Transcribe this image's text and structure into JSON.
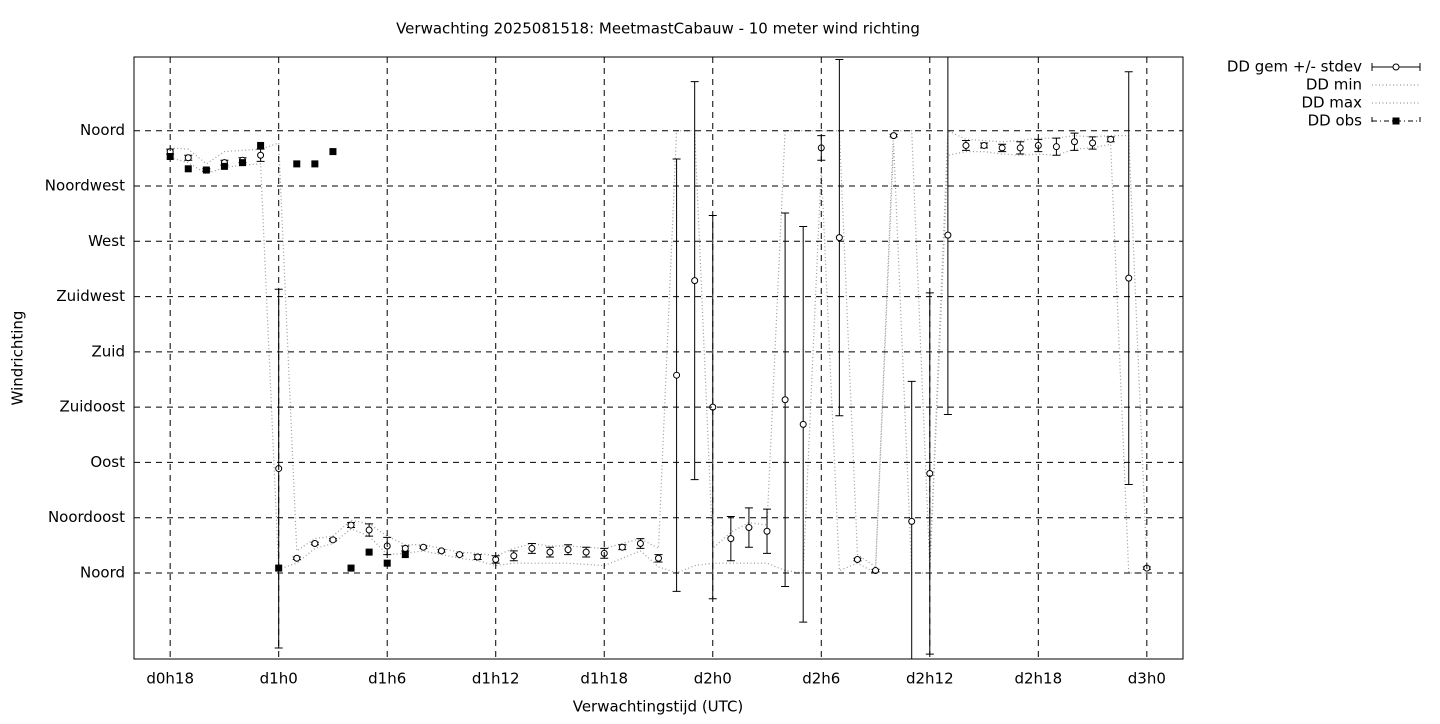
{
  "chart_data": {
    "type": "errorbar",
    "title": "Verwachting 2025081518: MeetmastCabauw - 10 meter wind richting",
    "xlabel": "Verwachtingstijd (UTC)",
    "ylabel": "Windrichting",
    "xlim": [
      16,
      74
    ],
    "xticks": [
      {
        "value": 18,
        "label": "d0h18"
      },
      {
        "value": 24,
        "label": "d1h0"
      },
      {
        "value": 30,
        "label": "d1h6"
      },
      {
        "value": 36,
        "label": "d1h12"
      },
      {
        "value": 42,
        "label": "d1h18"
      },
      {
        "value": 48,
        "label": "d2h0"
      },
      {
        "value": 54,
        "label": "d2h6"
      },
      {
        "value": 60,
        "label": "d2h12"
      },
      {
        "value": 66,
        "label": "d2h18"
      },
      {
        "value": 72,
        "label": "d3h0"
      }
    ],
    "ylim": [
      -70,
      420
    ],
    "yticks": [
      {
        "value": 0,
        "label": "Noord"
      },
      {
        "value": 45,
        "label": "Noordoost"
      },
      {
        "value": 90,
        "label": "Oost"
      },
      {
        "value": 135,
        "label": "Zuidoost"
      },
      {
        "value": 180,
        "label": "Zuid"
      },
      {
        "value": 225,
        "label": "Zuidwest"
      },
      {
        "value": 270,
        "label": "West"
      },
      {
        "value": 315,
        "label": "Noordwest"
      },
      {
        "value": 360,
        "label": "Noord"
      }
    ],
    "grid": true,
    "legend": "right",
    "x": [
      18,
      19,
      20,
      21,
      22,
      23,
      24,
      25,
      26,
      27,
      28,
      29,
      30,
      31,
      32,
      33,
      34,
      35,
      36,
      37,
      38,
      39,
      40,
      41,
      42,
      43,
      44,
      45,
      46,
      47,
      48,
      49,
      50,
      51,
      52,
      53,
      54,
      55,
      56,
      57,
      58,
      59,
      60,
      61,
      62,
      63,
      64,
      65,
      66,
      67,
      68,
      69,
      70,
      71,
      72
    ],
    "series": [
      {
        "name": "DD gem +/- stdev",
        "color": "#000000",
        "style": "errorbar",
        "values": [
          343,
          338,
          328,
          334,
          336,
          340,
          85,
          12,
          24,
          27,
          39,
          35,
          22,
          20,
          21,
          18,
          15,
          13,
          11,
          14,
          20,
          17,
          19,
          17,
          16,
          21,
          24,
          12,
          161,
          238,
          135,
          28,
          37,
          34,
          141,
          121,
          346,
          273,
          11,
          2,
          356,
          42,
          81,
          275,
          348,
          348,
          346,
          346,
          348,
          347,
          351,
          350,
          353,
          240,
          4
        ],
        "errors": [
          2,
          2,
          1,
          2,
          2,
          5,
          146,
          1,
          1,
          1,
          2,
          5,
          7,
          2,
          1,
          1,
          1,
          2,
          3,
          4,
          4,
          4,
          4,
          4,
          4,
          2,
          4,
          3,
          176,
          162,
          156,
          18,
          16,
          18,
          152,
          161,
          10,
          145,
          1,
          1,
          1,
          114,
          147,
          146,
          4,
          2,
          3,
          5,
          5,
          7,
          7,
          5,
          2,
          168,
          1
        ]
      },
      {
        "name": "DD min",
        "color": "#999999",
        "style": "dotted",
        "values": [
          338,
          334,
          325,
          330,
          332,
          333,
          3,
          8,
          20,
          24,
          36,
          30,
          15,
          16,
          18,
          15,
          12,
          10,
          6,
          8,
          8,
          8,
          8,
          7,
          6,
          12,
          18,
          5,
          0,
          6,
          8,
          8,
          8,
          8,
          2,
          0,
          330,
          2,
          8,
          0,
          350,
          0,
          0,
          340,
          343,
          343,
          341,
          340,
          341,
          340,
          345,
          346,
          349,
          0,
          0
        ]
      },
      {
        "name": "DD max",
        "color": "#999999",
        "style": "dotted",
        "values": [
          346,
          345,
          333,
          343,
          344,
          345,
          350,
          18,
          28,
          30,
          43,
          40,
          30,
          23,
          23,
          20,
          17,
          16,
          14,
          20,
          24,
          22,
          22,
          21,
          20,
          24,
          28,
          20,
          360,
          360,
          20,
          33,
          41,
          39,
          360,
          360,
          360,
          360,
          15,
          5,
          360,
          360,
          5,
          360,
          353,
          352,
          351,
          352,
          354,
          354,
          356,
          355,
          356,
          356,
          8
        ]
      },
      {
        "name": "DD obs",
        "color": "#000000",
        "style": "square",
        "x": [
          18,
          19,
          20,
          21,
          22,
          23,
          24,
          25,
          26,
          27,
          28,
          29,
          30,
          31
        ],
        "values": [
          339,
          329,
          328,
          331,
          334,
          348,
          4,
          333,
          333,
          343,
          4,
          17,
          8,
          15
        ]
      }
    ]
  }
}
